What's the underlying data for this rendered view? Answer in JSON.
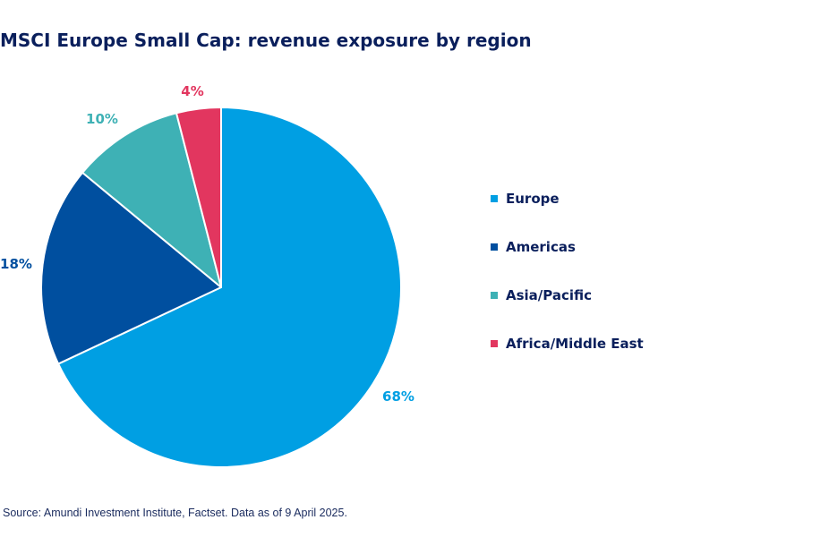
{
  "chart_data": {
    "type": "pie",
    "title": "MSCI Europe Small Cap: revenue exposure by region",
    "categories": [
      "Europe",
      "Americas",
      "Asia/Pacific",
      "Africa/Middle East"
    ],
    "values": [
      68,
      18,
      10,
      4
    ],
    "data_labels": [
      "68%",
      "18%",
      "10%",
      "4%"
    ],
    "colors": [
      "#009fe3",
      "#004f9f",
      "#3eb1b5",
      "#e2365f"
    ],
    "legend": "right",
    "start_angle": "12 o'clock, clockwise"
  },
  "source": "Source: Amundi Investment Institute, Factset. Data as of 9 April 2025."
}
